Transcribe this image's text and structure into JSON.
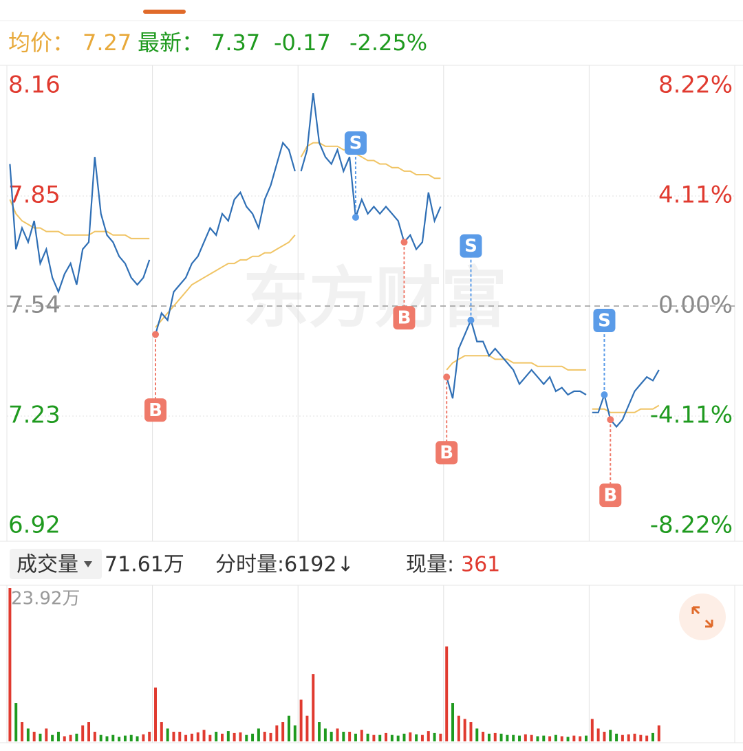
{
  "info": {
    "avg_label": "均价：",
    "avg": 7.27,
    "last_label": "最新：",
    "last": 7.37,
    "change": -0.17,
    "change_pct": "-2.25%"
  },
  "watermark": "东方财富",
  "volume_header": {
    "menu": "成交量",
    "total": "71.61万",
    "minute_volume": "分时量:6192↓",
    "current_label": "现量:",
    "current": 361
  },
  "chart_data": {
    "type": "line",
    "ylim": [
      6.92,
      8.16
    ],
    "yticks": [
      6.92,
      7.23,
      7.54,
      7.85,
      8.16
    ],
    "y2lim": [
      -8.22,
      8.22
    ],
    "y2ticks": [
      {
        "value": -8.22,
        "label": "-8.22%"
      },
      {
        "value": -4.11,
        "label": "-4.11%"
      },
      {
        "value": 0,
        "label": "0.00%"
      },
      {
        "value": 4.11,
        "label": "4.11%"
      },
      {
        "value": 8.22,
        "label": "8.22%"
      }
    ],
    "prev_close": 7.54,
    "vlim": [
      0,
      23.92
    ],
    "vticks": [
      {
        "value": 23.92,
        "label": "23.92万"
      }
    ],
    "colors": {
      "price": "#2f6fb5",
      "avg": "#f0c464",
      "up": "#e03a2f",
      "down": "#1f9a1f",
      "flat": "#8a8a8a",
      "buy": "#ef7a6a",
      "sell": "#5a9be8"
    },
    "days": [
      {
        "price": [
          7.94,
          7.7,
          7.76,
          7.72,
          7.78,
          7.66,
          7.7,
          7.62,
          7.58,
          7.63,
          7.66,
          7.6,
          7.7,
          7.72,
          7.96,
          7.8,
          7.74,
          7.72,
          7.68,
          7.66,
          7.62,
          7.6,
          7.62,
          7.67
        ],
        "avg": [
          7.84,
          7.8,
          7.78,
          7.77,
          7.76,
          7.76,
          7.75,
          7.75,
          7.75,
          7.74,
          7.74,
          7.74,
          7.74,
          7.74,
          7.75,
          7.75,
          7.75,
          7.74,
          7.74,
          7.74,
          7.73,
          7.73,
          7.73,
          7.73
        ],
        "volume": [
          23.92,
          6,
          3,
          2,
          1.5,
          1.2,
          2,
          1,
          1.5,
          0.8,
          1,
          1.2,
          2.5,
          3,
          1.5,
          1,
          0.8,
          1,
          0.7,
          0.9,
          1,
          0.8,
          1.1,
          1.5
        ]
      },
      {
        "price": [
          7.46,
          7.52,
          7.5,
          7.58,
          7.6,
          7.62,
          7.66,
          7.68,
          7.72,
          7.76,
          7.74,
          7.8,
          7.78,
          7.84,
          7.86,
          7.82,
          7.8,
          7.76,
          7.84,
          7.88,
          7.94,
          8.0,
          7.98,
          7.92
        ],
        "avg": [
          7.48,
          7.5,
          7.52,
          7.54,
          7.56,
          7.58,
          7.6,
          7.61,
          7.62,
          7.63,
          7.64,
          7.65,
          7.66,
          7.66,
          7.67,
          7.67,
          7.68,
          7.68,
          7.69,
          7.69,
          7.7,
          7.71,
          7.72,
          7.74
        ],
        "volume": [
          8.4,
          3,
          2,
          1.5,
          1.5,
          1,
          1.2,
          1.4,
          1.8,
          1,
          1.5,
          1.2,
          1.6,
          1.3,
          1.4,
          1,
          1.2,
          2,
          1.5,
          1.3,
          2.5,
          3,
          4,
          2.5
        ]
      },
      {
        "price": [
          7.92,
          7.98,
          8.14,
          8.0,
          7.96,
          7.94,
          7.98,
          7.92,
          7.96,
          7.79,
          7.84,
          7.8,
          7.82,
          7.8,
          7.82,
          7.8,
          7.78,
          7.72,
          7.74,
          7.7,
          7.72,
          7.86,
          7.78,
          7.82
        ],
        "avg": [
          7.96,
          7.99,
          8.0,
          8.0,
          7.99,
          7.99,
          7.99,
          7.98,
          7.98,
          7.97,
          7.96,
          7.95,
          7.95,
          7.94,
          7.94,
          7.93,
          7.93,
          7.92,
          7.92,
          7.91,
          7.91,
          7.91,
          7.9,
          7.9
        ],
        "volume": [
          6.5,
          4,
          10.5,
          3,
          2,
          1.5,
          2,
          1.5,
          1.5,
          1.2,
          1.8,
          1.2,
          1,
          1,
          1.3,
          1,
          0.9,
          1.2,
          1.4,
          1.1,
          1,
          1.6,
          1.3,
          1.2
        ]
      },
      {
        "price": [
          7.34,
          7.28,
          7.42,
          7.46,
          7.5,
          7.44,
          7.44,
          7.4,
          7.42,
          7.4,
          7.38,
          7.36,
          7.32,
          7.34,
          7.36,
          7.34,
          7.32,
          7.34,
          7.3,
          7.31,
          7.29,
          7.3,
          7.3,
          7.29
        ],
        "avg": [
          7.36,
          7.38,
          7.39,
          7.4,
          7.4,
          7.4,
          7.4,
          7.4,
          7.39,
          7.39,
          7.39,
          7.38,
          7.38,
          7.38,
          7.38,
          7.37,
          7.37,
          7.37,
          7.37,
          7.37,
          7.36,
          7.36,
          7.36,
          7.36
        ],
        "volume": [
          14.8,
          6,
          4,
          3.5,
          3,
          2,
          1.5,
          1.2,
          1.3,
          1.2,
          1,
          1,
          0.9,
          1.1,
          1,
          0.8,
          0.9,
          0.8,
          1,
          0.8,
          0.7,
          0.9,
          0.8,
          0.9
        ]
      },
      {
        "price": [
          7.24,
          7.24,
          7.29,
          7.22,
          7.2,
          7.22,
          7.26,
          7.3,
          7.32,
          7.34,
          7.33,
          7.36
        ],
        "avg": [
          7.25,
          7.25,
          7.25,
          7.24,
          7.24,
          7.24,
          7.24,
          7.24,
          7.25,
          7.25,
          7.25,
          7.26
        ],
        "volume": [
          3.5,
          2,
          1.5,
          1.8,
          1.2,
          1,
          1.1,
          1.2,
          1,
          0.9,
          1.3,
          2.5
        ]
      }
    ],
    "signals": [
      {
        "label": "B",
        "day": 1,
        "at": 0,
        "value": 7.46
      },
      {
        "label": "S",
        "day": 2,
        "at": 9,
        "value": 7.79
      },
      {
        "label": "B",
        "day": 2,
        "at": 17,
        "value": 7.72
      },
      {
        "label": "B",
        "day": 3,
        "at": 0,
        "value": 7.34
      },
      {
        "label": "S",
        "day": 3,
        "at": 4,
        "value": 7.5
      },
      {
        "label": "S",
        "day": 4,
        "at": 2,
        "value": 7.29
      },
      {
        "label": "B",
        "day": 4,
        "at": 3,
        "value": 7.22
      }
    ]
  }
}
